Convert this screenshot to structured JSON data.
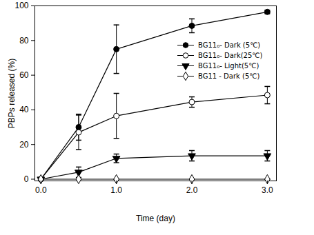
{
  "chart_data": {
    "type": "line",
    "x_label": "Time (day)",
    "y_label": "PBPs released (%)",
    "x": [
      0,
      0.5,
      1,
      2,
      3
    ],
    "xlim": [
      -0.08,
      3.12
    ],
    "xticks": [
      0,
      1,
      2,
      3
    ],
    "ylim": [
      -1,
      100
    ],
    "yticks": [
      0,
      20,
      40,
      60,
      80,
      100
    ],
    "grid": false,
    "legend": "upper right",
    "series": [
      {
        "name": "BG11₀- Dark (5℃)",
        "color": "#000000",
        "marker": "circle",
        "values": [
          0,
          30,
          75,
          88.5,
          96.5
        ],
        "errors": [
          0,
          7.5,
          14,
          4,
          1
        ]
      },
      {
        "name": "BG11₀- Dark(25℃)",
        "color": "#000000",
        "marker": "circle-open",
        "values": [
          0,
          27,
          36.5,
          44.5,
          48.5
        ],
        "errors": [
          0,
          10,
          13,
          3,
          5
        ]
      },
      {
        "name": "BG11₀- Light(5℃)",
        "color": "#000000",
        "marker": "triangle-down",
        "values": [
          0,
          4,
          12,
          13.5,
          13.5
        ],
        "errors": [
          0,
          3,
          2.5,
          3,
          3
        ]
      },
      {
        "name": "BG11 - Dark (5℃)",
        "color": "#000000",
        "marker": "diamond-open",
        "values": [
          0,
          0,
          0,
          0,
          0
        ],
        "errors": [
          0,
          0,
          0,
          0,
          0
        ]
      }
    ]
  }
}
